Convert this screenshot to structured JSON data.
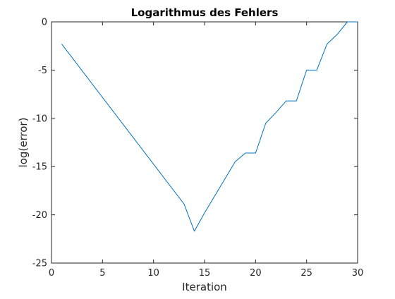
{
  "chart_data": {
    "type": "line",
    "title": "Logarithmus des Fehlers",
    "xlabel": "Iteration",
    "ylabel": "log(error)",
    "xlim": [
      0,
      30
    ],
    "ylim": [
      -25,
      0
    ],
    "xticks": [
      0,
      5,
      10,
      15,
      20,
      25,
      30
    ],
    "yticks": [
      0,
      -5,
      -10,
      -15,
      -20,
      -25
    ],
    "xtick_labels": [
      "0",
      "5",
      "10",
      "15",
      "20",
      "25",
      "30"
    ],
    "ytick_labels": [
      "0",
      "-5",
      "-10",
      "-15",
      "-20",
      "-25"
    ],
    "grid": false,
    "series": [
      {
        "color": "#0072BD",
        "x": [
          1,
          13,
          14,
          15,
          18,
          19,
          20,
          21,
          22,
          23,
          24,
          25,
          26,
          27,
          28,
          29,
          30
        ],
        "y": [
          -2.3,
          -18.9,
          -21.7,
          -19.8,
          -14.5,
          -13.6,
          -13.6,
          -10.5,
          -9.4,
          -8.2,
          -8.2,
          -5.0,
          -5.0,
          -2.3,
          -1.3,
          0.0,
          0.0
        ]
      }
    ]
  }
}
